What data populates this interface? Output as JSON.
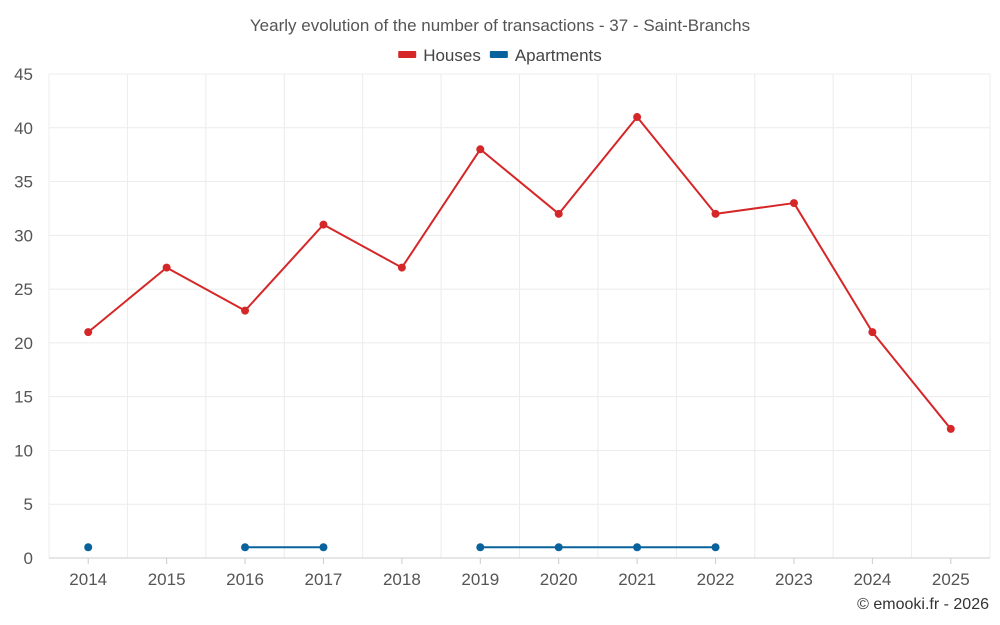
{
  "chart_data": {
    "type": "line",
    "title": "Yearly evolution of the number of transactions - 37 - Saint-Branchs",
    "categories": [
      "2014",
      "2015",
      "2016",
      "2017",
      "2018",
      "2019",
      "2020",
      "2021",
      "2022",
      "2023",
      "2024",
      "2025"
    ],
    "ylim": [
      0,
      45
    ],
    "yticks": [
      0,
      5,
      10,
      15,
      20,
      25,
      30,
      35,
      40,
      45
    ],
    "grid": true,
    "legend_position": "top-center",
    "series": [
      {
        "name": "Houses",
        "color": "#d62728",
        "values": [
          21,
          27,
          23,
          31,
          27,
          38,
          32,
          41,
          32,
          33,
          21,
          12
        ]
      },
      {
        "name": "Apartments",
        "color": "#08639c",
        "values": [
          1,
          null,
          1,
          1,
          null,
          1,
          1,
          1,
          1,
          null,
          null,
          null
        ]
      }
    ],
    "credit": "© emooki.fr - 2026"
  }
}
